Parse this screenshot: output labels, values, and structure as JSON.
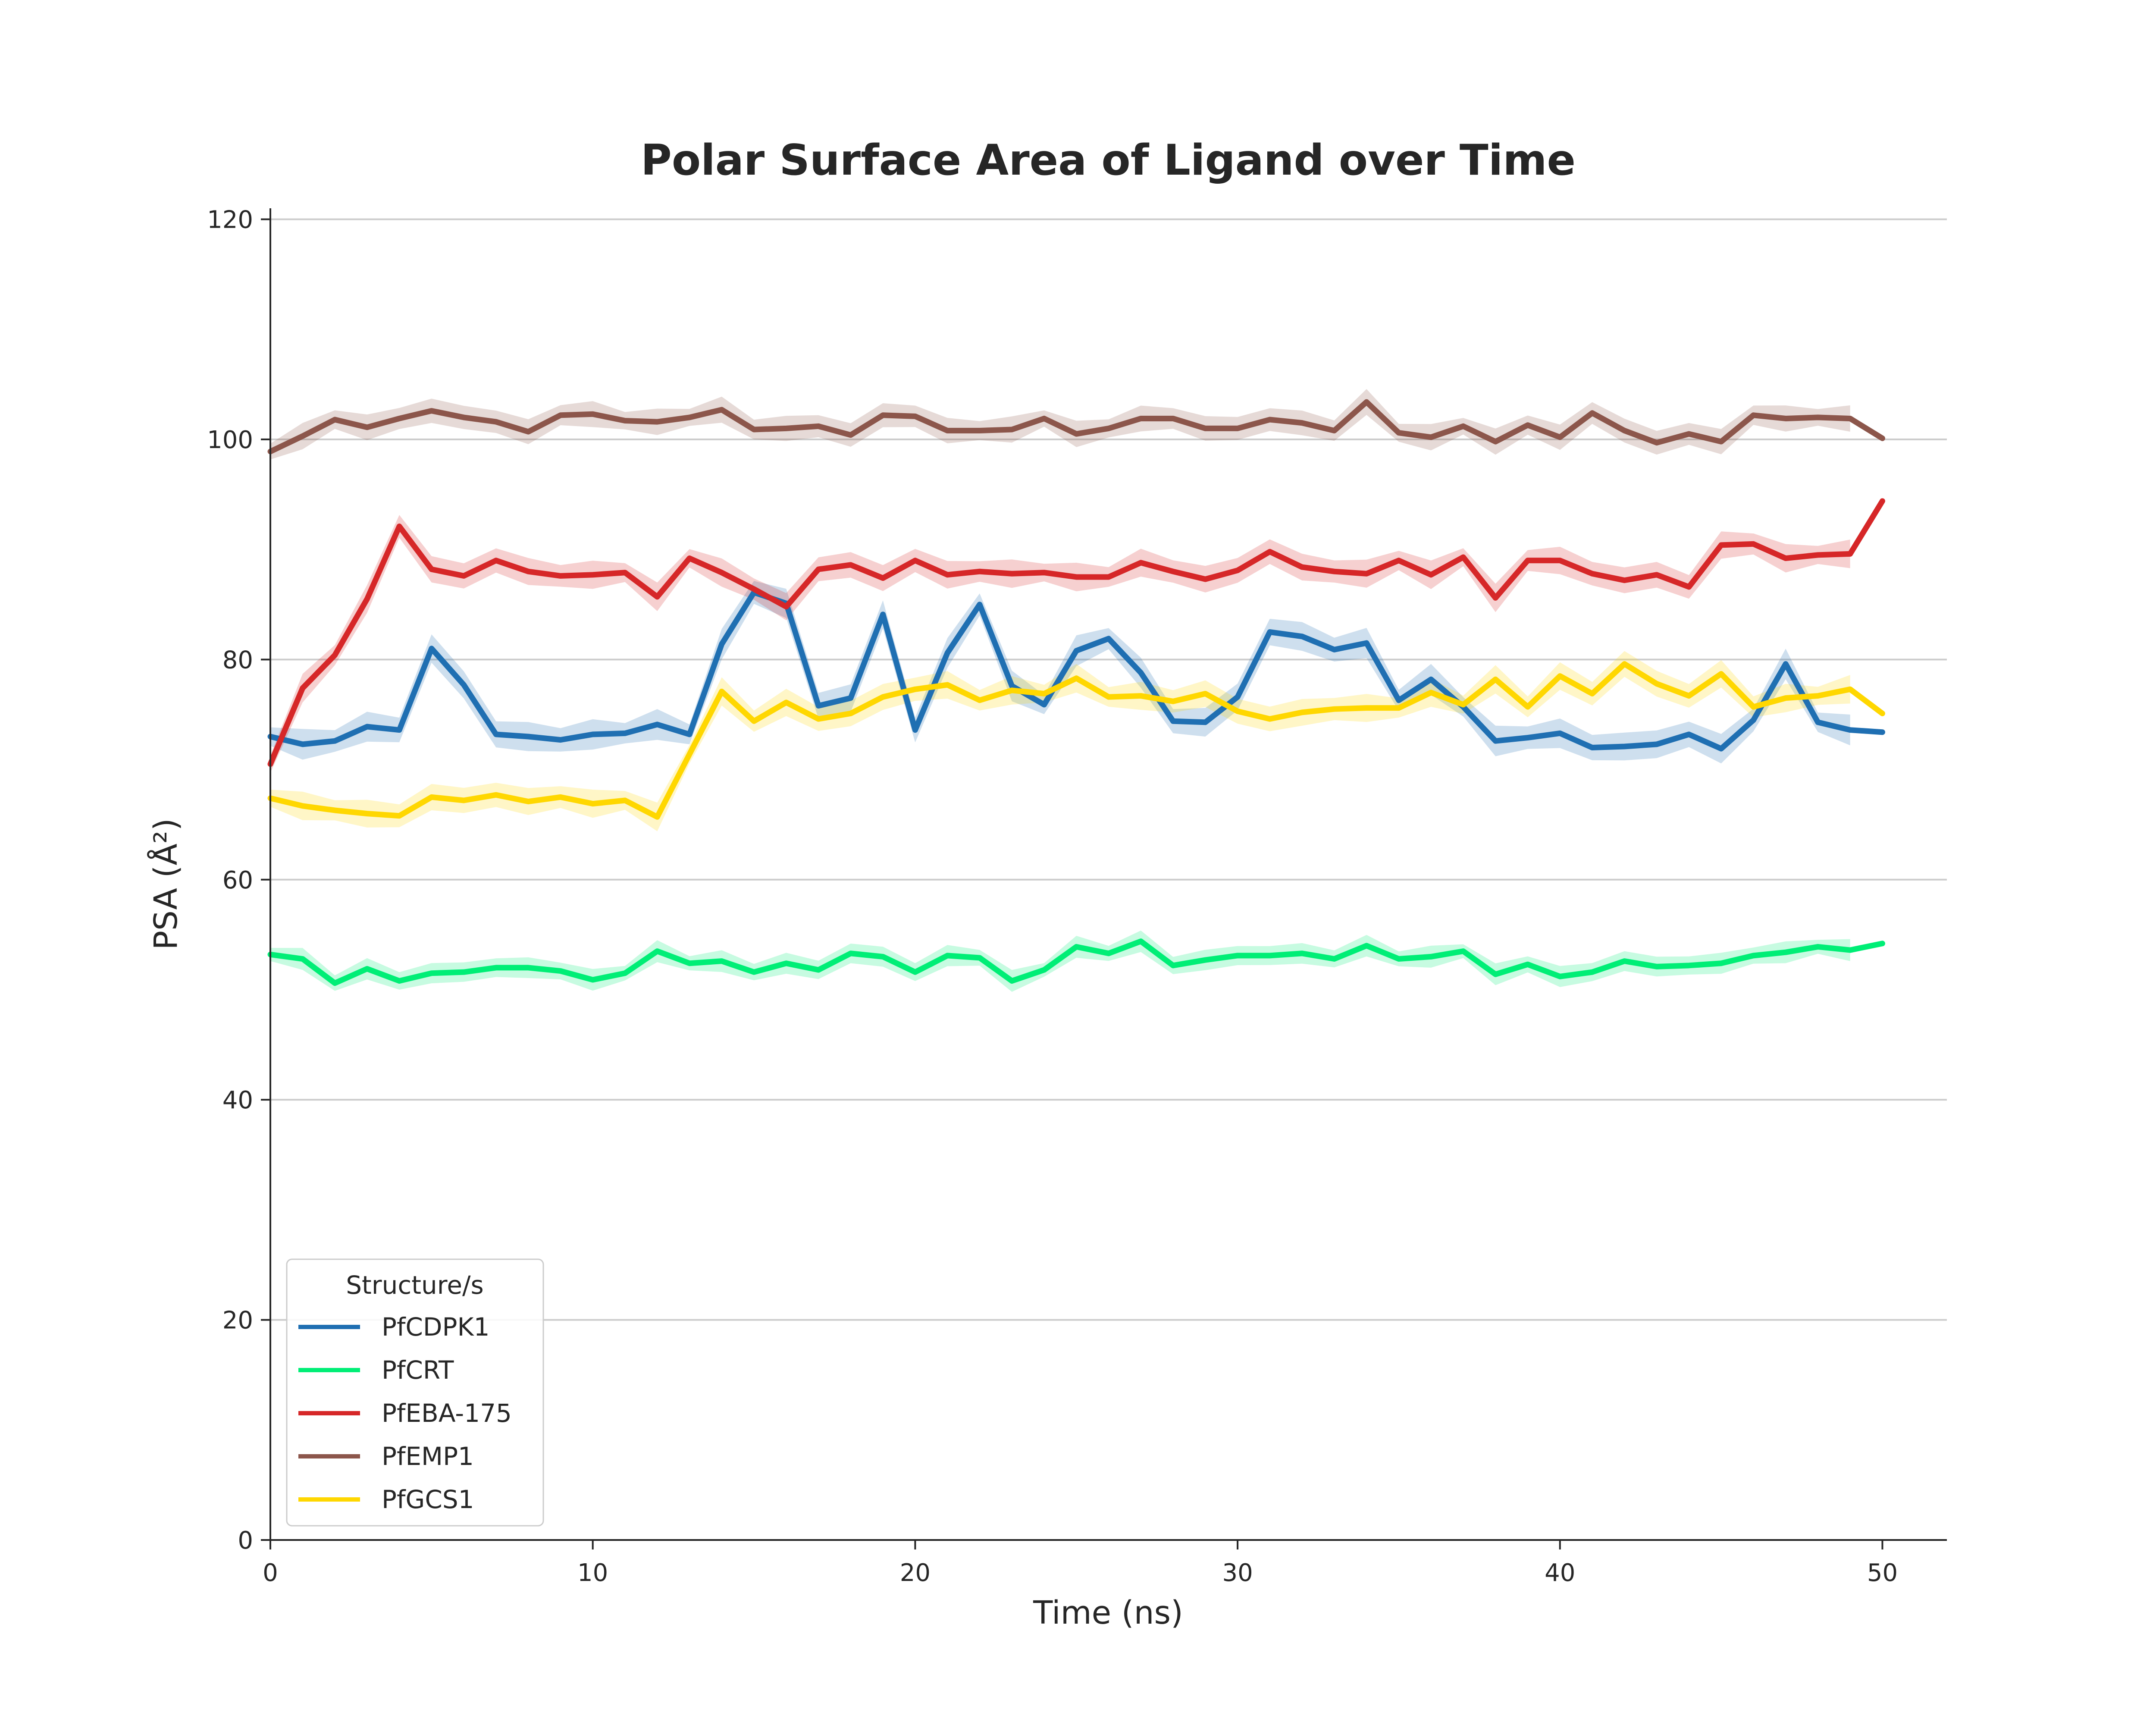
{
  "chart_data": {
    "type": "line",
    "title": "Polar Surface Area of Ligand over Time",
    "xlabel": "Time (ns)",
    "ylabel": "PSA (Å²)",
    "xlim": [
      0,
      52
    ],
    "ylim": [
      0,
      121
    ],
    "xticks": [
      0,
      10,
      20,
      30,
      40,
      50
    ],
    "yticks": [
      0,
      20,
      40,
      60,
      80,
      100,
      120
    ],
    "grid": "horizontal",
    "legend": {
      "title": "Structure/s",
      "placement": "lower-left"
    },
    "x": [
      0,
      1,
      2,
      3,
      4,
      5,
      6,
      7,
      8,
      9,
      10,
      11,
      12,
      13,
      14,
      15,
      16,
      17,
      18,
      19,
      20,
      21,
      22,
      23,
      24,
      25,
      26,
      27,
      28,
      29,
      30,
      31,
      32,
      33,
      34,
      35,
      36,
      37,
      38,
      39,
      40,
      41,
      42,
      43,
      44,
      45,
      46,
      47,
      48,
      49,
      50
    ],
    "series": [
      {
        "name": "PfCDPK1",
        "color": "#1f6fb2",
        "values": [
          73,
          72.3,
          72.6,
          73.9,
          73.6,
          81,
          77.7,
          73.2,
          73,
          72.7,
          73.2,
          73.3,
          74.1,
          73.2,
          81.4,
          86.1,
          85.1,
          75.8,
          76.5,
          84.1,
          73.6,
          80.6,
          85,
          77.6,
          75.9,
          80.8,
          81.9,
          78.8,
          74.4,
          74.3,
          76.6,
          82.5,
          82.1,
          80.9,
          81.5,
          76.3,
          78.2,
          75.7,
          72.6,
          72.9,
          73.3,
          72,
          72.1,
          72.3,
          73.2,
          71.9,
          74.5,
          79.6,
          74.3,
          73.6,
          73.4
        ],
        "band": 1.4
      },
      {
        "name": "PfCRT",
        "color": "#00ee76",
        "values": [
          53.2,
          52.8,
          50.6,
          51.9,
          50.8,
          51.5,
          51.6,
          52,
          52,
          51.7,
          50.9,
          51.5,
          53.5,
          52.4,
          52.6,
          51.6,
          52.4,
          51.8,
          53.3,
          53,
          51.6,
          53.1,
          52.9,
          50.8,
          51.8,
          53.9,
          53.3,
          54.4,
          52.2,
          52.7,
          53.1,
          53.1,
          53.3,
          52.8,
          54,
          52.8,
          53,
          53.5,
          51.4,
          52.3,
          51.2,
          51.6,
          52.6,
          52.1,
          52.2,
          52.4,
          53.1,
          53.4,
          53.9,
          53.6,
          54.2
        ],
        "band": 1.0
      },
      {
        "name": "PfEBA-175",
        "color": "#d62728",
        "values": [
          70.5,
          77.4,
          80.4,
          85.5,
          92.1,
          88.2,
          87.6,
          89,
          88,
          87.6,
          87.7,
          87.9,
          85.7,
          89.2,
          87.9,
          86.4,
          84.8,
          88.2,
          88.6,
          87.4,
          89,
          87.7,
          88,
          87.8,
          87.9,
          87.5,
          87.5,
          88.8,
          88,
          87.3,
          88.1,
          89.8,
          88.4,
          88,
          87.8,
          89,
          87.7,
          89.3,
          85.6,
          89,
          89,
          87.8,
          87.2,
          87.7,
          86.6,
          90.4,
          90.5,
          89.2,
          89.5,
          89.6,
          94.4
        ],
        "band": 1.3
      },
      {
        "name": "PfEMP1",
        "color": "#8c564b",
        "values": [
          98.9,
          100.3,
          101.8,
          101.1,
          101.9,
          102.6,
          102,
          101.6,
          100.7,
          102.2,
          102.3,
          101.7,
          101.6,
          102,
          102.7,
          100.9,
          101,
          101.2,
          100.4,
          102.2,
          102.1,
          100.8,
          100.8,
          100.9,
          101.9,
          100.5,
          101,
          101.9,
          101.9,
          101,
          101,
          101.8,
          101.5,
          100.8,
          103.4,
          100.6,
          100.2,
          101.2,
          99.8,
          101.3,
          100.2,
          102.4,
          100.8,
          99.7,
          100.5,
          99.8,
          102.2,
          101.9,
          102,
          101.9,
          100.1
        ],
        "band": 1.2
      },
      {
        "name": "PfGCS1",
        "color": "#ffd700",
        "values": [
          67.4,
          66.7,
          66.3,
          66,
          65.8,
          67.5,
          67.2,
          67.7,
          67.1,
          67.5,
          66.9,
          67.2,
          65.7,
          71.4,
          77.1,
          74.4,
          76.1,
          74.6,
          75.1,
          76.6,
          77.3,
          77.7,
          76.3,
          77.2,
          76.9,
          78.3,
          76.6,
          76.7,
          76.2,
          76.9,
          75.3,
          74.6,
          75.2,
          75.5,
          75.6,
          75.6,
          77,
          75.9,
          78.2,
          75.7,
          78.5,
          76.9,
          79.6,
          77.8,
          76.7,
          78.7,
          75.7,
          76.5,
          76.7,
          77.3,
          75.1
        ],
        "band": 1.3
      }
    ]
  }
}
